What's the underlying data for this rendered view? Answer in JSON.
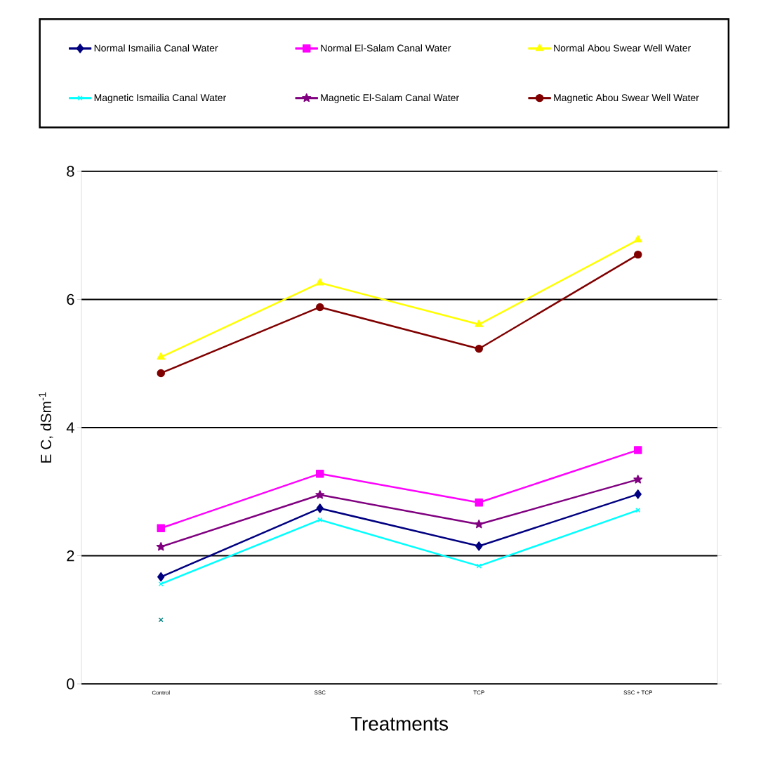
{
  "chart_data": {
    "type": "line",
    "xlabel": "Treatments",
    "ylabel": "E C,  dSm$^{-1}$",
    "categories": [
      "Control",
      "SSC",
      "TCP",
      "SSC + TCP"
    ],
    "ylim": [
      0,
      8
    ],
    "yticks": [
      0,
      2,
      4,
      6,
      8
    ],
    "grid": "y",
    "legend": "top",
    "series": [
      {
        "name": "Normal Ismailia Canal Water",
        "color": "#000080",
        "marker": "diamond",
        "values": [
          1.67,
          2.74,
          2.15,
          2.96
        ]
      },
      {
        "name": "Normal   El-Salam Canal Water",
        "color": "#ff00ff",
        "marker": "square",
        "values": [
          2.43,
          3.28,
          2.83,
          3.65
        ]
      },
      {
        "name": "Normal Abou Swear Well Water",
        "color": "#ffff00",
        "marker": "triangle",
        "values": [
          5.1,
          6.26,
          5.61,
          6.93
        ]
      },
      {
        "name": "Magnetic Ismailia Canal Water",
        "color": "#00ffff",
        "marker": "cross",
        "values": [
          1.56,
          2.56,
          1.84,
          2.71
        ]
      },
      {
        "name": "Magnetic El-Salam Canal Water",
        "color": "#800080",
        "marker": "star",
        "values": [
          2.14,
          2.95,
          2.49,
          3.19
        ]
      },
      {
        "name": "Magnetic Abou Swear Well Water",
        "color": "#800000",
        "marker": "circle",
        "values": [
          4.85,
          5.88,
          5.23,
          6.7
        ]
      },
      {
        "type": "scatter",
        "color": "#008080",
        "marker": "cross",
        "values": [
          1.0,
          null,
          null,
          null
        ]
      }
    ]
  }
}
